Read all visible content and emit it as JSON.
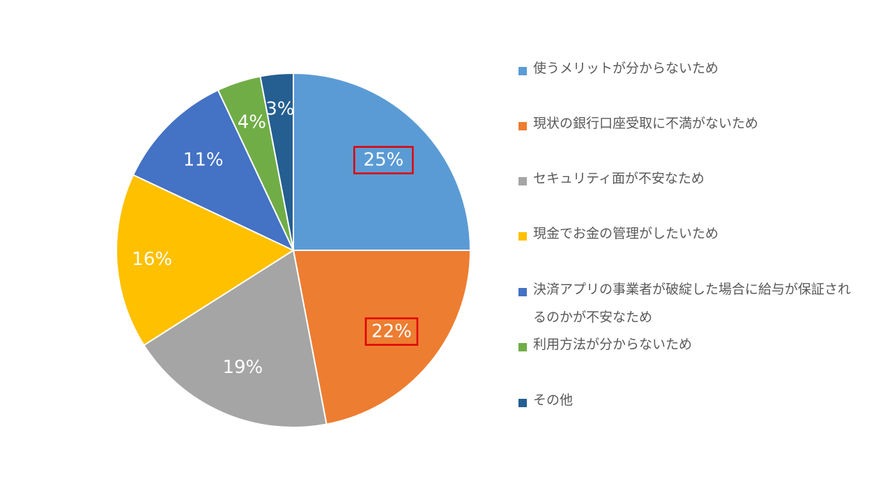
{
  "chart_data": {
    "type": "pie",
    "title": "",
    "start_angle_deg": 0,
    "direction": "clockwise",
    "series": [
      {
        "categories": [
          "使うメリットが分からないため",
          "現状の銀行口座受取に不満がないため",
          "セキュリティ面が不安なため",
          "現金でお金の管理がしたいため",
          "決済アプリの事業者が破綻した場合に給与が保証されるのかが不安なため",
          "利用方法が分からないため",
          "その他"
        ],
        "values": [
          25,
          22,
          19,
          16,
          11,
          4,
          3
        ],
        "labels": [
          "25%",
          "22%",
          "19%",
          "16%",
          "11%",
          "4%",
          "3%"
        ],
        "colors": [
          "#5B9BD5",
          "#ED7D31",
          "#A5A5A5",
          "#FFC000",
          "#4472C4",
          "#70AD47",
          "#255E91"
        ],
        "highlighted": [
          true,
          true,
          false,
          false,
          false,
          false,
          false
        ]
      }
    ],
    "highlight_color": "#E00000",
    "label_color": "#FFFFFF",
    "legend_position": "right",
    "legend": {
      "items": [
        "使うメリットが分からないため",
        "現状の銀行口座受取に不満がないため",
        "セキュリティ面が不安なため",
        "現金でお金の管理がしたいため",
        "決済アプリの事業者が破綻した場合に給与が保証されるのかが不安なため",
        "利用方法が分からないため",
        "その他"
      ],
      "text_color": "#595959"
    }
  }
}
